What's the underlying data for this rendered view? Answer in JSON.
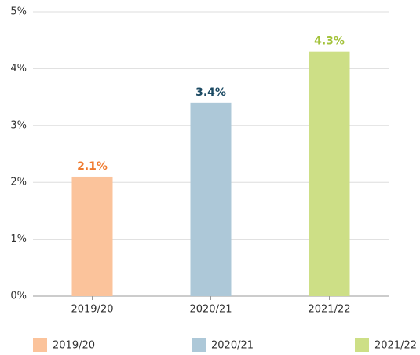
{
  "chart_data": {
    "type": "bar",
    "categories": [
      "2019/20",
      "2020/21",
      "2021/22"
    ],
    "values": [
      2.1,
      3.4,
      4.3
    ],
    "value_labels": [
      "2.1%",
      "3.4%",
      "4.3%"
    ],
    "colors": [
      "#fbc39b",
      "#adc8d8",
      "#cddf86"
    ],
    "label_colors": [
      "#f07a2e",
      "#1c4a63",
      "#a3c23a"
    ],
    "ylim": [
      0,
      5
    ],
    "yticks": [
      {
        "value": 0,
        "label": "0%"
      },
      {
        "value": 1,
        "label": "1%"
      },
      {
        "value": 2,
        "label": "2%"
      },
      {
        "value": 3,
        "label": "3%"
      },
      {
        "value": 4,
        "label": "4%"
      },
      {
        "value": 5,
        "label": "5%"
      }
    ],
    "grid": true,
    "legend": "bottom"
  }
}
